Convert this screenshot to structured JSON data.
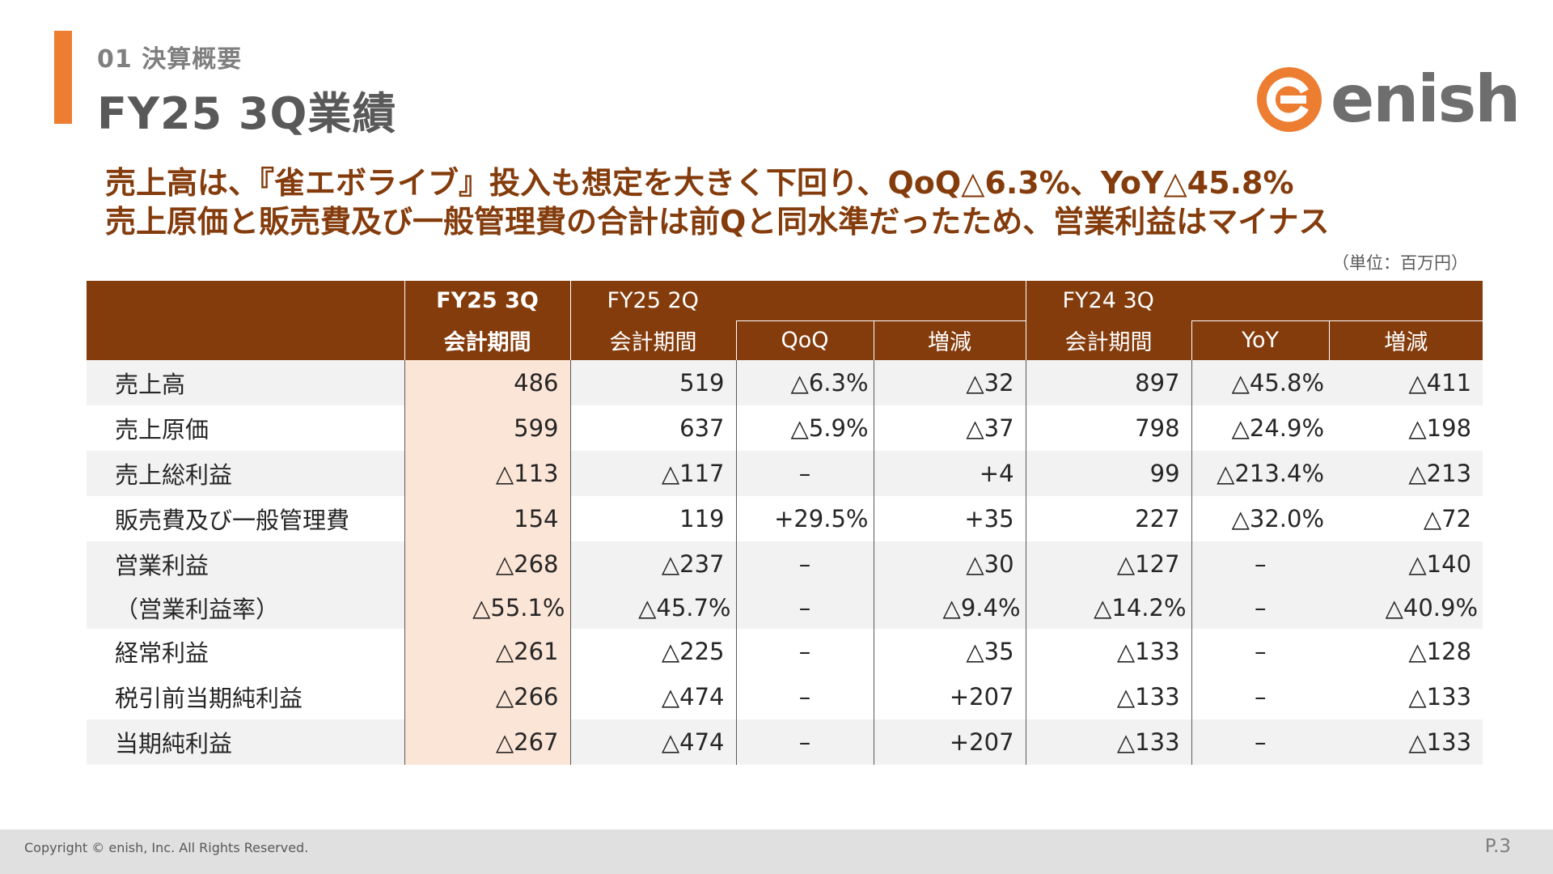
{
  "header": {
    "section": "01 決算概要",
    "title": "FY25 3Q業績"
  },
  "logo": {
    "text": "enish",
    "color": "#ED7D31"
  },
  "headline": {
    "line1": "売上高は、『雀エボライブ』投入も想定を大きく下回り、QoQ△6.3%、YoY△45.8%",
    "line2": "売上原価と販売費及び一般管理費の合計は前Qと同水準だったため、営業利益はマイナス"
  },
  "unit_note": "（単位：百万円）",
  "table": {
    "headers": {
      "cur_period": "FY25 3Q",
      "cur_sub": "会計期間",
      "prev_q": "FY25 2Q",
      "prev_q_sub": "会計期間",
      "qoq": "QoQ",
      "qoq_diff": "増減",
      "prev_y": "FY24 3Q",
      "prev_y_sub": "会計期間",
      "yoy": "YoY",
      "yoy_diff": "増減"
    },
    "rows": [
      {
        "label": "売上高",
        "fy25_3q": "486",
        "fy25_2q": "519",
        "qoq": "△6.3%",
        "qoq_diff": "△32",
        "fy24_3q": "897",
        "yoy": "△45.8%",
        "yoy_diff": "△411"
      },
      {
        "label": "売上原価",
        "fy25_3q": "599",
        "fy25_2q": "637",
        "qoq": "△5.9%",
        "qoq_diff": "△37",
        "fy24_3q": "798",
        "yoy": "△24.9%",
        "yoy_diff": "△198"
      },
      {
        "label": "売上総利益",
        "fy25_3q": "△113",
        "fy25_2q": "△117",
        "qoq": "–",
        "qoq_diff": "+4",
        "fy24_3q": "99",
        "yoy": "△213.4%",
        "yoy_diff": "△213"
      },
      {
        "label": "販売費及び一般管理費",
        "fy25_3q": "154",
        "fy25_2q": "119",
        "qoq": "+29.5%",
        "qoq_diff": "+35",
        "fy24_3q": "227",
        "yoy": "△32.0%",
        "yoy_diff": "△72"
      },
      {
        "label": "営業利益",
        "fy25_3q": "△268",
        "fy25_2q": "△237",
        "qoq": "–",
        "qoq_diff": "△30",
        "fy24_3q": "△127",
        "yoy": "–",
        "yoy_diff": "△140"
      },
      {
        "label": "（営業利益率）",
        "fy25_3q": "△55.1%",
        "fy25_2q": "△45.7%",
        "qoq": "–",
        "qoq_diff": "△9.4%",
        "fy24_3q": "△14.2%",
        "yoy": "–",
        "yoy_diff": "△40.9%"
      },
      {
        "label": "経常利益",
        "fy25_3q": "△261",
        "fy25_2q": "△225",
        "qoq": "–",
        "qoq_diff": "△35",
        "fy24_3q": "△133",
        "yoy": "–",
        "yoy_diff": "△128"
      },
      {
        "label": "税引前当期純利益",
        "fy25_3q": "△266",
        "fy25_2q": "△474",
        "qoq": "–",
        "qoq_diff": "+207",
        "fy24_3q": "△133",
        "yoy": "–",
        "yoy_diff": "△133"
      },
      {
        "label": "当期純利益",
        "fy25_3q": "△267",
        "fy25_2q": "△474",
        "qoq": "–",
        "qoq_diff": "+207",
        "fy24_3q": "△133",
        "yoy": "–",
        "yoy_diff": "△133"
      }
    ]
  },
  "footer": {
    "copyright": "Copyright © enish, Inc. All Rights Reserved.",
    "page": "P.3"
  }
}
